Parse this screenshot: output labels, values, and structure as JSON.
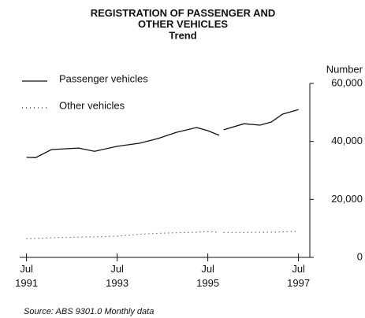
{
  "chart_data": {
    "type": "line",
    "title": "REGISTRATION OF PASSENGER AND OTHER VEHICLES",
    "subtitle": "Trend",
    "y_label": "Number",
    "source": "Source: ABS 9301.0 Monthly data",
    "x": [
      1991.5,
      1991.7,
      1992.05,
      1992.65,
      1993.0,
      1993.5,
      1994.0,
      1994.4,
      1994.8,
      1995.25,
      1995.5,
      1995.75,
      1995.8,
      1995.85,
      1996.3,
      1996.65,
      1996.9,
      1997.15,
      1997.5
    ],
    "series": [
      {
        "name": "Passenger vehicles",
        "color": "#111111",
        "style": "solid",
        "values": [
          34500,
          34400,
          37200,
          37700,
          36600,
          38300,
          39400,
          41000,
          43100,
          44800,
          43700,
          42100,
          null,
          44000,
          46100,
          45600,
          46700,
          49400,
          51000
        ]
      },
      {
        "name": "Other vehicles",
        "color": "#333333",
        "style": "dotted",
        "values": [
          6400,
          6500,
          6800,
          7000,
          7100,
          7300,
          8000,
          8300,
          8500,
          8700,
          8900,
          8700,
          null,
          8600,
          8600,
          8700,
          8700,
          8800,
          9000
        ]
      }
    ],
    "xlim": [
      1991.35,
      1997.75
    ],
    "ylim": [
      0,
      60000
    ],
    "xticks": [
      {
        "value": 1991.5,
        "label": "Jul 1991"
      },
      {
        "value": 1993.5,
        "label": "Jul 1993"
      },
      {
        "value": 1995.5,
        "label": "Jul 1995"
      },
      {
        "value": 1997.5,
        "label": "Jul 1997"
      }
    ],
    "yticks": [
      {
        "value": 0,
        "label": "0"
      },
      {
        "value": 20000,
        "label": "20,000"
      },
      {
        "value": 40000,
        "label": "40,000"
      },
      {
        "value": 60000,
        "label": "60,000"
      }
    ],
    "grid": false
  }
}
